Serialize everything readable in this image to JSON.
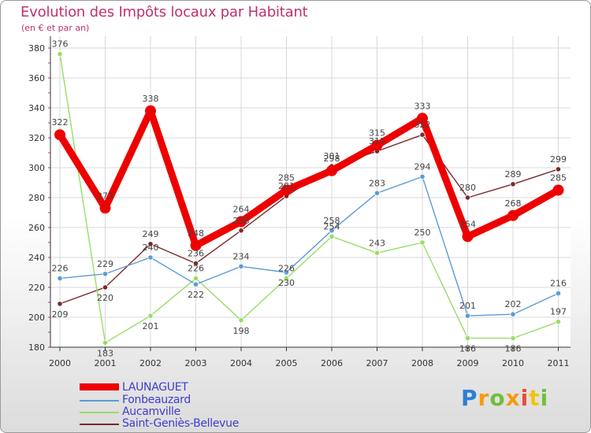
{
  "chart_data": {
    "type": "line",
    "title": "Evolution des Impôts locaux par Habitant",
    "subtitle": "(en € et par an)",
    "categories": [
      "2000",
      "2001",
      "2002",
      "2003",
      "2004",
      "2005",
      "2006",
      "2007",
      "2008",
      "2009",
      "2010",
      "2011"
    ],
    "ylim": [
      180,
      380
    ],
    "yticks": [
      180,
      200,
      220,
      240,
      260,
      280,
      300,
      320,
      340,
      360,
      380
    ],
    "series": [
      {
        "name": "LAUNAGUET",
        "color": "#ee0000",
        "values": [
          322,
          273,
          338,
          248,
          264,
          285,
          298,
          315,
          333,
          254,
          268,
          285
        ]
      },
      {
        "name": "Fonbeauzard",
        "color": "#5c9bd6",
        "values": [
          226,
          229,
          240,
          222,
          234,
          230,
          258,
          283,
          294,
          201,
          202,
          216
        ]
      },
      {
        "name": "Aucamville",
        "color": "#99dd66",
        "values": [
          376,
          183,
          201,
          226,
          198,
          226,
          254,
          243,
          250,
          186,
          186,
          197
        ]
      },
      {
        "name": "Saint-Geniès-Bellevue",
        "color": "#7a2a2a",
        "values": [
          209,
          220,
          249,
          236,
          258,
          281,
          301,
          311,
          322,
          280,
          289,
          299
        ]
      }
    ]
  },
  "brand": {
    "letters": [
      "P",
      "r",
      "o",
      "x",
      "i",
      "t",
      "i"
    ],
    "colors": [
      "#2d7fd6",
      "#f39c12",
      "#6fbf3a",
      "#f39c12",
      "#e74c3c",
      "#f1c40f",
      "#6fbf3a"
    ]
  }
}
